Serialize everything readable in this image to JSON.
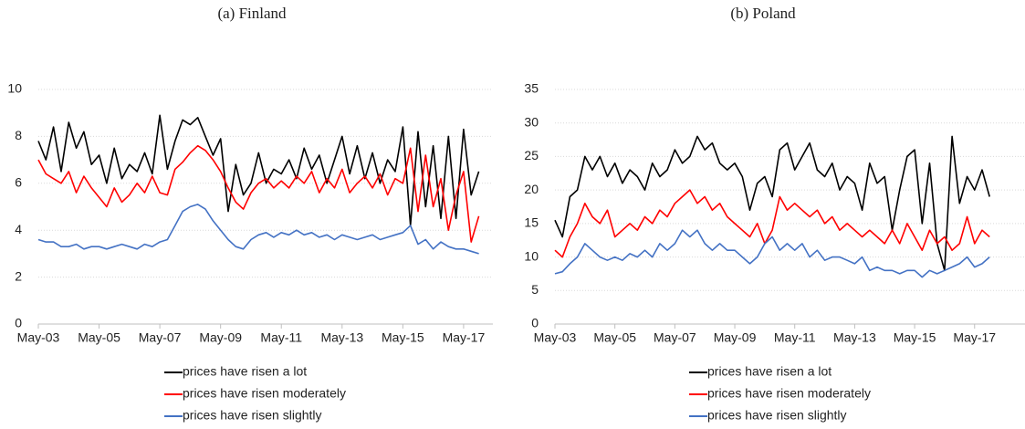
{
  "chart_data": [
    {
      "type": "line",
      "title": "(a) Finland",
      "categories": [
        "May-03",
        null,
        null,
        null,
        null,
        null,
        null,
        null,
        "May-05",
        null,
        null,
        null,
        null,
        null,
        null,
        null,
        "May-07",
        null,
        null,
        null,
        null,
        null,
        null,
        null,
        "May-09",
        null,
        null,
        null,
        null,
        null,
        null,
        null,
        "May-11",
        null,
        null,
        null,
        null,
        null,
        null,
        null,
        "May-13",
        null,
        null,
        null,
        null,
        null,
        null,
        null,
        "May-15",
        null,
        null,
        null,
        null,
        null,
        null,
        null,
        "May-17",
        null,
        null
      ],
      "series": [
        {
          "name": "prices have risen a lot",
          "color": "#000000",
          "values": [
            7.8,
            7.0,
            8.4,
            6.5,
            8.6,
            7.5,
            8.2,
            6.8,
            7.2,
            6.0,
            7.5,
            6.2,
            6.8,
            6.5,
            7.3,
            6.4,
            8.9,
            6.6,
            7.8,
            8.7,
            8.5,
            8.8,
            8.0,
            7.2,
            7.9,
            4.8,
            6.8,
            5.5,
            6.0,
            7.3,
            6.0,
            6.6,
            6.4,
            7.0,
            6.2,
            7.5,
            6.6,
            7.2,
            6.0,
            7.0,
            8.0,
            6.4,
            7.6,
            6.2,
            7.3,
            6.0,
            7.0,
            6.5,
            8.4,
            4.2,
            8.2,
            5.0,
            7.6,
            4.5,
            8.0,
            4.5,
            8.3,
            5.5,
            6.5
          ]
        },
        {
          "name": "prices have risen moderately",
          "color": "#ff0000",
          "values": [
            7.0,
            6.4,
            6.2,
            6.0,
            6.5,
            5.6,
            6.3,
            5.8,
            5.4,
            5.0,
            5.8,
            5.2,
            5.5,
            6.0,
            5.6,
            6.3,
            5.6,
            5.5,
            6.6,
            6.9,
            7.3,
            7.6,
            7.4,
            7.0,
            6.5,
            5.8,
            5.2,
            4.9,
            5.6,
            6.0,
            6.2,
            5.8,
            6.1,
            5.8,
            6.3,
            6.0,
            6.5,
            5.6,
            6.2,
            5.8,
            6.6,
            5.6,
            6.0,
            6.3,
            5.8,
            6.4,
            5.5,
            6.2,
            6.0,
            7.5,
            4.8,
            7.2,
            5.0,
            6.2,
            4.0,
            5.5,
            6.5,
            3.5,
            4.6
          ]
        },
        {
          "name": "prices have risen slightly",
          "color": "#4472c4",
          "values": [
            3.6,
            3.5,
            3.5,
            3.3,
            3.3,
            3.4,
            3.2,
            3.3,
            3.3,
            3.2,
            3.3,
            3.4,
            3.3,
            3.2,
            3.4,
            3.3,
            3.5,
            3.6,
            4.2,
            4.8,
            5.0,
            5.1,
            4.9,
            4.4,
            4.0,
            3.6,
            3.3,
            3.2,
            3.6,
            3.8,
            3.9,
            3.7,
            3.9,
            3.8,
            4.0,
            3.8,
            3.9,
            3.7,
            3.8,
            3.6,
            3.8,
            3.7,
            3.6,
            3.7,
            3.8,
            3.6,
            3.7,
            3.8,
            3.9,
            4.2,
            3.4,
            3.6,
            3.2,
            3.5,
            3.3,
            3.2,
            3.2,
            3.1,
            3.0
          ]
        }
      ],
      "ylim": [
        0,
        10
      ],
      "yticks": [
        0,
        2,
        4,
        6,
        8,
        10
      ],
      "grid": true,
      "legend": "bottom"
    },
    {
      "type": "line",
      "title": "(b) Poland",
      "categories": [
        "May-03",
        null,
        null,
        null,
        null,
        null,
        null,
        null,
        "May-05",
        null,
        null,
        null,
        null,
        null,
        null,
        null,
        "May-07",
        null,
        null,
        null,
        null,
        null,
        null,
        null,
        "May-09",
        null,
        null,
        null,
        null,
        null,
        null,
        null,
        "May-11",
        null,
        null,
        null,
        null,
        null,
        null,
        null,
        "May-13",
        null,
        null,
        null,
        null,
        null,
        null,
        null,
        "May-15",
        null,
        null,
        null,
        null,
        null,
        null,
        null,
        "May-17",
        null,
        null
      ],
      "series": [
        {
          "name": "prices have risen a lot",
          "color": "#000000",
          "values": [
            15.5,
            13,
            19,
            20,
            25,
            23,
            25,
            22,
            24,
            21,
            23,
            22,
            20,
            24,
            22,
            23,
            26,
            24,
            25,
            28,
            26,
            27,
            24,
            23,
            24,
            22,
            17,
            21,
            22,
            19,
            26,
            27,
            23,
            25,
            27,
            23,
            22,
            24,
            20,
            22,
            21,
            17,
            24,
            21,
            22,
            14,
            20,
            25,
            26,
            15,
            24,
            12,
            8,
            28,
            18,
            22,
            20,
            23,
            19
          ]
        },
        {
          "name": "prices have risen moderately",
          "color": "#ff0000",
          "values": [
            11,
            10,
            13,
            15,
            18,
            16,
            15,
            17,
            13,
            14,
            15,
            14,
            16,
            15,
            17,
            16,
            18,
            19,
            20,
            18,
            19,
            17,
            18,
            16,
            15,
            14,
            13,
            15,
            12,
            14,
            19,
            17,
            18,
            17,
            16,
            17,
            15,
            16,
            14,
            15,
            14,
            13,
            14,
            13,
            12,
            14,
            12,
            15,
            13,
            11,
            14,
            12,
            13,
            11,
            12,
            16,
            12,
            14,
            13
          ]
        },
        {
          "name": "prices have risen slightly",
          "color": "#4472c4",
          "values": [
            7.5,
            7.8,
            9,
            10,
            12,
            11,
            10,
            9.5,
            10,
            9.5,
            10.5,
            10,
            11,
            10,
            12,
            11,
            12,
            14,
            13,
            14,
            12,
            11,
            12,
            11,
            11,
            10,
            9,
            10,
            12,
            13,
            11,
            12,
            11,
            12,
            10,
            11,
            9.5,
            10,
            10,
            9.5,
            9,
            10,
            8,
            8.5,
            8,
            8,
            7.5,
            8,
            8,
            7,
            8,
            7.5,
            8,
            8.5,
            9,
            10,
            8.5,
            9,
            10
          ]
        }
      ],
      "ylim": [
        0,
        35
      ],
      "yticks": [
        0,
        5,
        10,
        15,
        20,
        25,
        30,
        35
      ],
      "grid": true,
      "legend": "bottom"
    }
  ]
}
